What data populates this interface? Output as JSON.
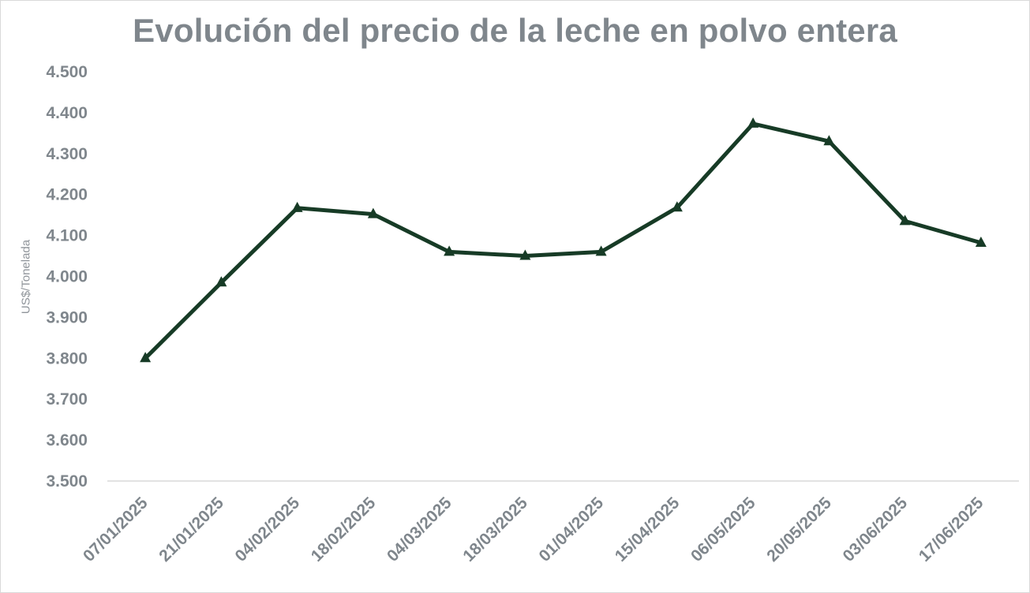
{
  "chart_data": {
    "type": "line",
    "title": "Evolución del precio de la leche en polvo entera",
    "xlabel": "",
    "ylabel": "US$/Tonelada",
    "ylim": [
      3500,
      4500
    ],
    "yticks": [
      "4.500",
      "4.400",
      "4.300",
      "4.200",
      "4.100",
      "4.000",
      "3.900",
      "3.800",
      "3.700",
      "3.600",
      "3.500"
    ],
    "categories": [
      "07/01/2025",
      "21/01/2025",
      "04/02/2025",
      "18/02/2025",
      "04/03/2025",
      "18/03/2025",
      "01/04/2025",
      "15/04/2025",
      "06/05/2025",
      "20/05/2025",
      "03/06/2025",
      "17/06/2025"
    ],
    "series": [
      {
        "values": [
          3800,
          3985,
          4167,
          4152,
          4060,
          4050,
          4060,
          4168,
          4373,
          4330,
          4135,
          4082
        ],
        "color": "#173b26",
        "marker": "triangle"
      }
    ],
    "grid": false,
    "legend": "none"
  }
}
